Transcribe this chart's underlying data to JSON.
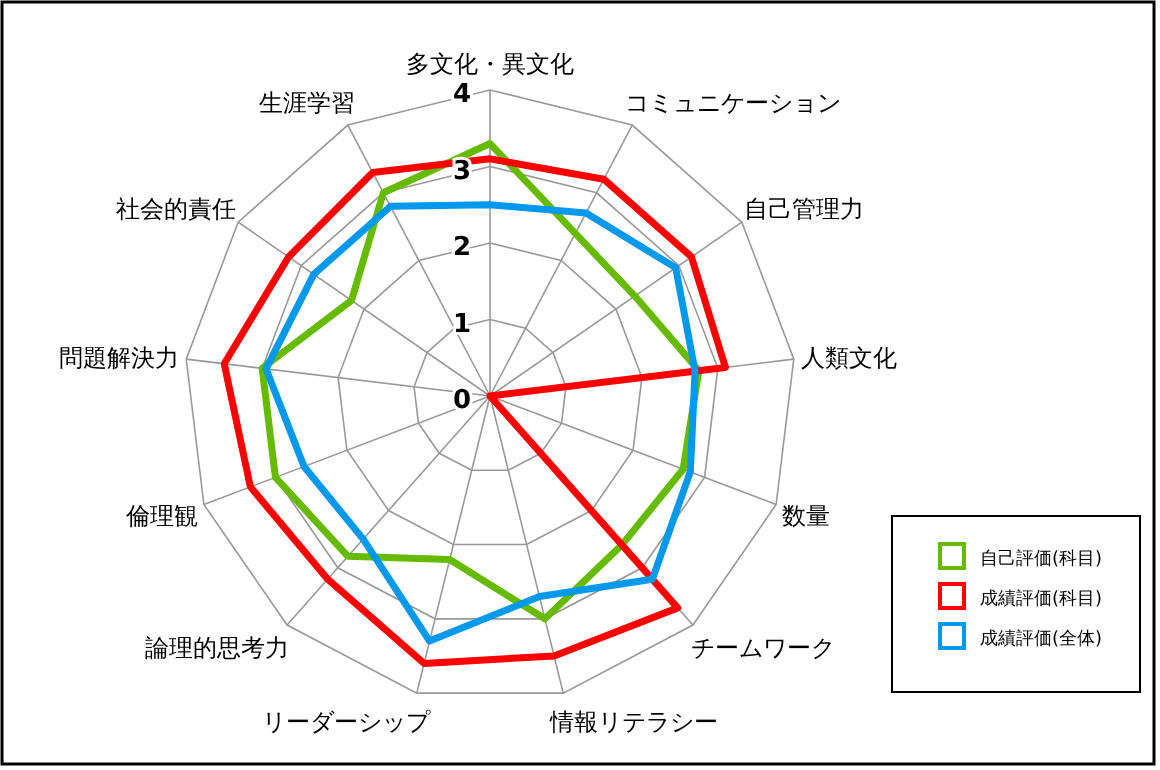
{
  "chart_data": {
    "type": "radar",
    "categories": [
      "多文化・異文化",
      "コミュニケーション",
      "自己管理力",
      "人類文化",
      "数量",
      "チームワーク",
      "情報リテラシー",
      "リーダーシップ",
      "論理的思考力",
      "倫理観",
      "問題解決力",
      "社会的責任",
      "生涯学習"
    ],
    "series": [
      {
        "name": "自己評価(科目)",
        "color": "#66bb00",
        "values": [
          3.3,
          2.4,
          2.3,
          2.75,
          2.7,
          2.6,
          3.0,
          2.2,
          2.8,
          3.0,
          3.0,
          2.2,
          3.0
        ]
      },
      {
        "name": "成績評価(科目)",
        "color": "#ff0000",
        "values": [
          3.1,
          3.2,
          3.2,
          3.1,
          0,
          3.7,
          3.5,
          3.6,
          3.2,
          3.35,
          3.5,
          3.2,
          3.3
        ]
      },
      {
        "name": "成績評価(全体)",
        "color": "#0099ee",
        "values": [
          2.5,
          2.7,
          2.95,
          2.7,
          2.8,
          3.2,
          2.7,
          3.3,
          2.5,
          2.6,
          2.95,
          2.8,
          2.8
        ]
      }
    ],
    "ylim": [
      0,
      4
    ],
    "yticks": [
      0,
      1,
      2,
      3,
      4
    ],
    "legend": "bottom right",
    "grid": true
  }
}
